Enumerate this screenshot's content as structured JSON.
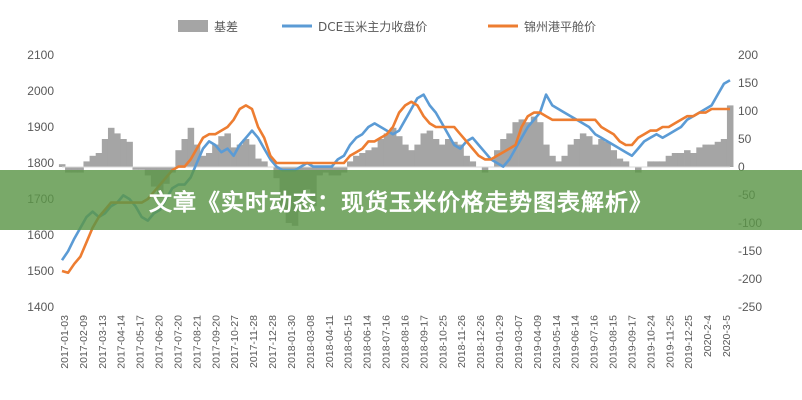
{
  "overlay_title": "文章《实时动态：现货玉米价格走势图表解析》",
  "chart_data": {
    "type": "line",
    "title": "",
    "grid": false,
    "legend_position": "top",
    "left_axis": {
      "min": 1400,
      "max": 2100,
      "ticks": [
        "1400",
        "1500",
        "1600",
        "1700",
        "1800",
        "1900",
        "2000",
        "2100"
      ]
    },
    "right_axis": {
      "min": -250,
      "max": 200,
      "ticks": [
        "-250",
        "-200",
        "-150",
        "-100",
        "-50",
        "0",
        "50",
        "100",
        "150",
        "200"
      ]
    },
    "x_tick_labels": [
      "2017-01-03",
      "2017-02-09",
      "2017-03-13",
      "2017-04-14",
      "2017-05-17",
      "2017-06-20",
      "2017-07-20",
      "2017-08-21",
      "2017-09-20",
      "2017-10-27",
      "2017-11-28",
      "2017-12-28",
      "2018-01-30",
      "2018-03-08",
      "2018-04-11",
      "2018-05-15",
      "2018-06-14",
      "2018-07-16",
      "2018-08-16",
      "2018-09-17",
      "2018-10-25",
      "2018-11-26",
      "2018-12-26",
      "2019-01-29",
      "2019-03-07",
      "2019-04-09",
      "2019-05-14",
      "2019-06-14",
      "2019-07-16",
      "2019-08-15",
      "2019-09-17",
      "2019-10-24",
      "2019-11-25",
      "2019-12-25",
      "2020-2-4",
      "2020-3-5"
    ],
    "series": [
      {
        "name": "基差",
        "axis": "right",
        "kind": "area",
        "color": "#a5a5a5",
        "values": [
          5,
          -10,
          -10,
          -10,
          10,
          20,
          25,
          50,
          70,
          60,
          50,
          45,
          -5,
          -5,
          -15,
          -35,
          -55,
          -30,
          -10,
          30,
          50,
          70,
          40,
          20,
          25,
          40,
          55,
          60,
          35,
          40,
          50,
          40,
          15,
          10,
          0,
          -20,
          -75,
          -100,
          -105,
          -80,
          -40,
          -70,
          -15,
          -10,
          -15,
          -15,
          -10,
          10,
          20,
          25,
          30,
          35,
          50,
          60,
          70,
          55,
          40,
          30,
          40,
          60,
          65,
          50,
          40,
          50,
          45,
          40,
          20,
          10,
          0,
          -10,
          0,
          30,
          50,
          60,
          80,
          85,
          80,
          90,
          80,
          40,
          20,
          10,
          20,
          40,
          50,
          60,
          55,
          40,
          50,
          45,
          30,
          15,
          10,
          0,
          -10,
          0,
          10,
          10,
          10,
          20,
          25,
          25,
          30,
          25,
          35,
          40,
          40,
          45,
          50,
          110
        ]
      },
      {
        "name": "DCE玉米主力收盘价",
        "axis": "left",
        "kind": "line",
        "color": "#5b9bd5",
        "values": [
          1530,
          1555,
          1590,
          1620,
          1650,
          1665,
          1650,
          1660,
          1680,
          1690,
          1710,
          1700,
          1680,
          1650,
          1640,
          1660,
          1670,
          1700,
          1730,
          1740,
          1740,
          1760,
          1800,
          1840,
          1860,
          1850,
          1830,
          1840,
          1820,
          1850,
          1870,
          1890,
          1870,
          1840,
          1810,
          1790,
          1780,
          1780,
          1780,
          1790,
          1800,
          1790,
          1790,
          1790,
          1790,
          1810,
          1820,
          1850,
          1870,
          1880,
          1900,
          1910,
          1900,
          1890,
          1880,
          1890,
          1920,
          1950,
          1980,
          1990,
          1960,
          1940,
          1910,
          1880,
          1850,
          1840,
          1860,
          1870,
          1850,
          1830,
          1810,
          1800,
          1790,
          1810,
          1840,
          1870,
          1900,
          1920,
          1940,
          1990,
          1960,
          1950,
          1940,
          1930,
          1920,
          1910,
          1900,
          1880,
          1870,
          1860,
          1850,
          1840,
          1830,
          1820,
          1840,
          1860,
          1870,
          1880,
          1870,
          1880,
          1890,
          1900,
          1920,
          1930,
          1940,
          1950,
          1960,
          1990,
          2020,
          2030
        ]
      },
      {
        "name": "锦州港平舱价",
        "axis": "left",
        "kind": "line",
        "color": "#ed7d31",
        "values": [
          1500,
          1495,
          1520,
          1540,
          1580,
          1620,
          1650,
          1670,
          1690,
          1690,
          1690,
          1690,
          1690,
          1690,
          1700,
          1720,
          1740,
          1760,
          1780,
          1790,
          1790,
          1810,
          1840,
          1870,
          1880,
          1880,
          1890,
          1900,
          1920,
          1950,
          1960,
          1950,
          1900,
          1870,
          1820,
          1800,
          1800,
          1800,
          1800,
          1800,
          1800,
          1800,
          1800,
          1800,
          1800,
          1800,
          1800,
          1820,
          1830,
          1840,
          1860,
          1860,
          1870,
          1880,
          1900,
          1940,
          1960,
          1970,
          1960,
          1930,
          1910,
          1900,
          1900,
          1900,
          1900,
          1880,
          1860,
          1840,
          1820,
          1810,
          1810,
          1820,
          1830,
          1840,
          1850,
          1900,
          1930,
          1940,
          1940,
          1930,
          1920,
          1920,
          1920,
          1920,
          1920,
          1920,
          1920,
          1920,
          1900,
          1890,
          1880,
          1860,
          1850,
          1850,
          1870,
          1880,
          1890,
          1890,
          1900,
          1900,
          1910,
          1920,
          1930,
          1930,
          1940,
          1940,
          1950,
          1950,
          1950,
          1950
        ]
      }
    ]
  }
}
